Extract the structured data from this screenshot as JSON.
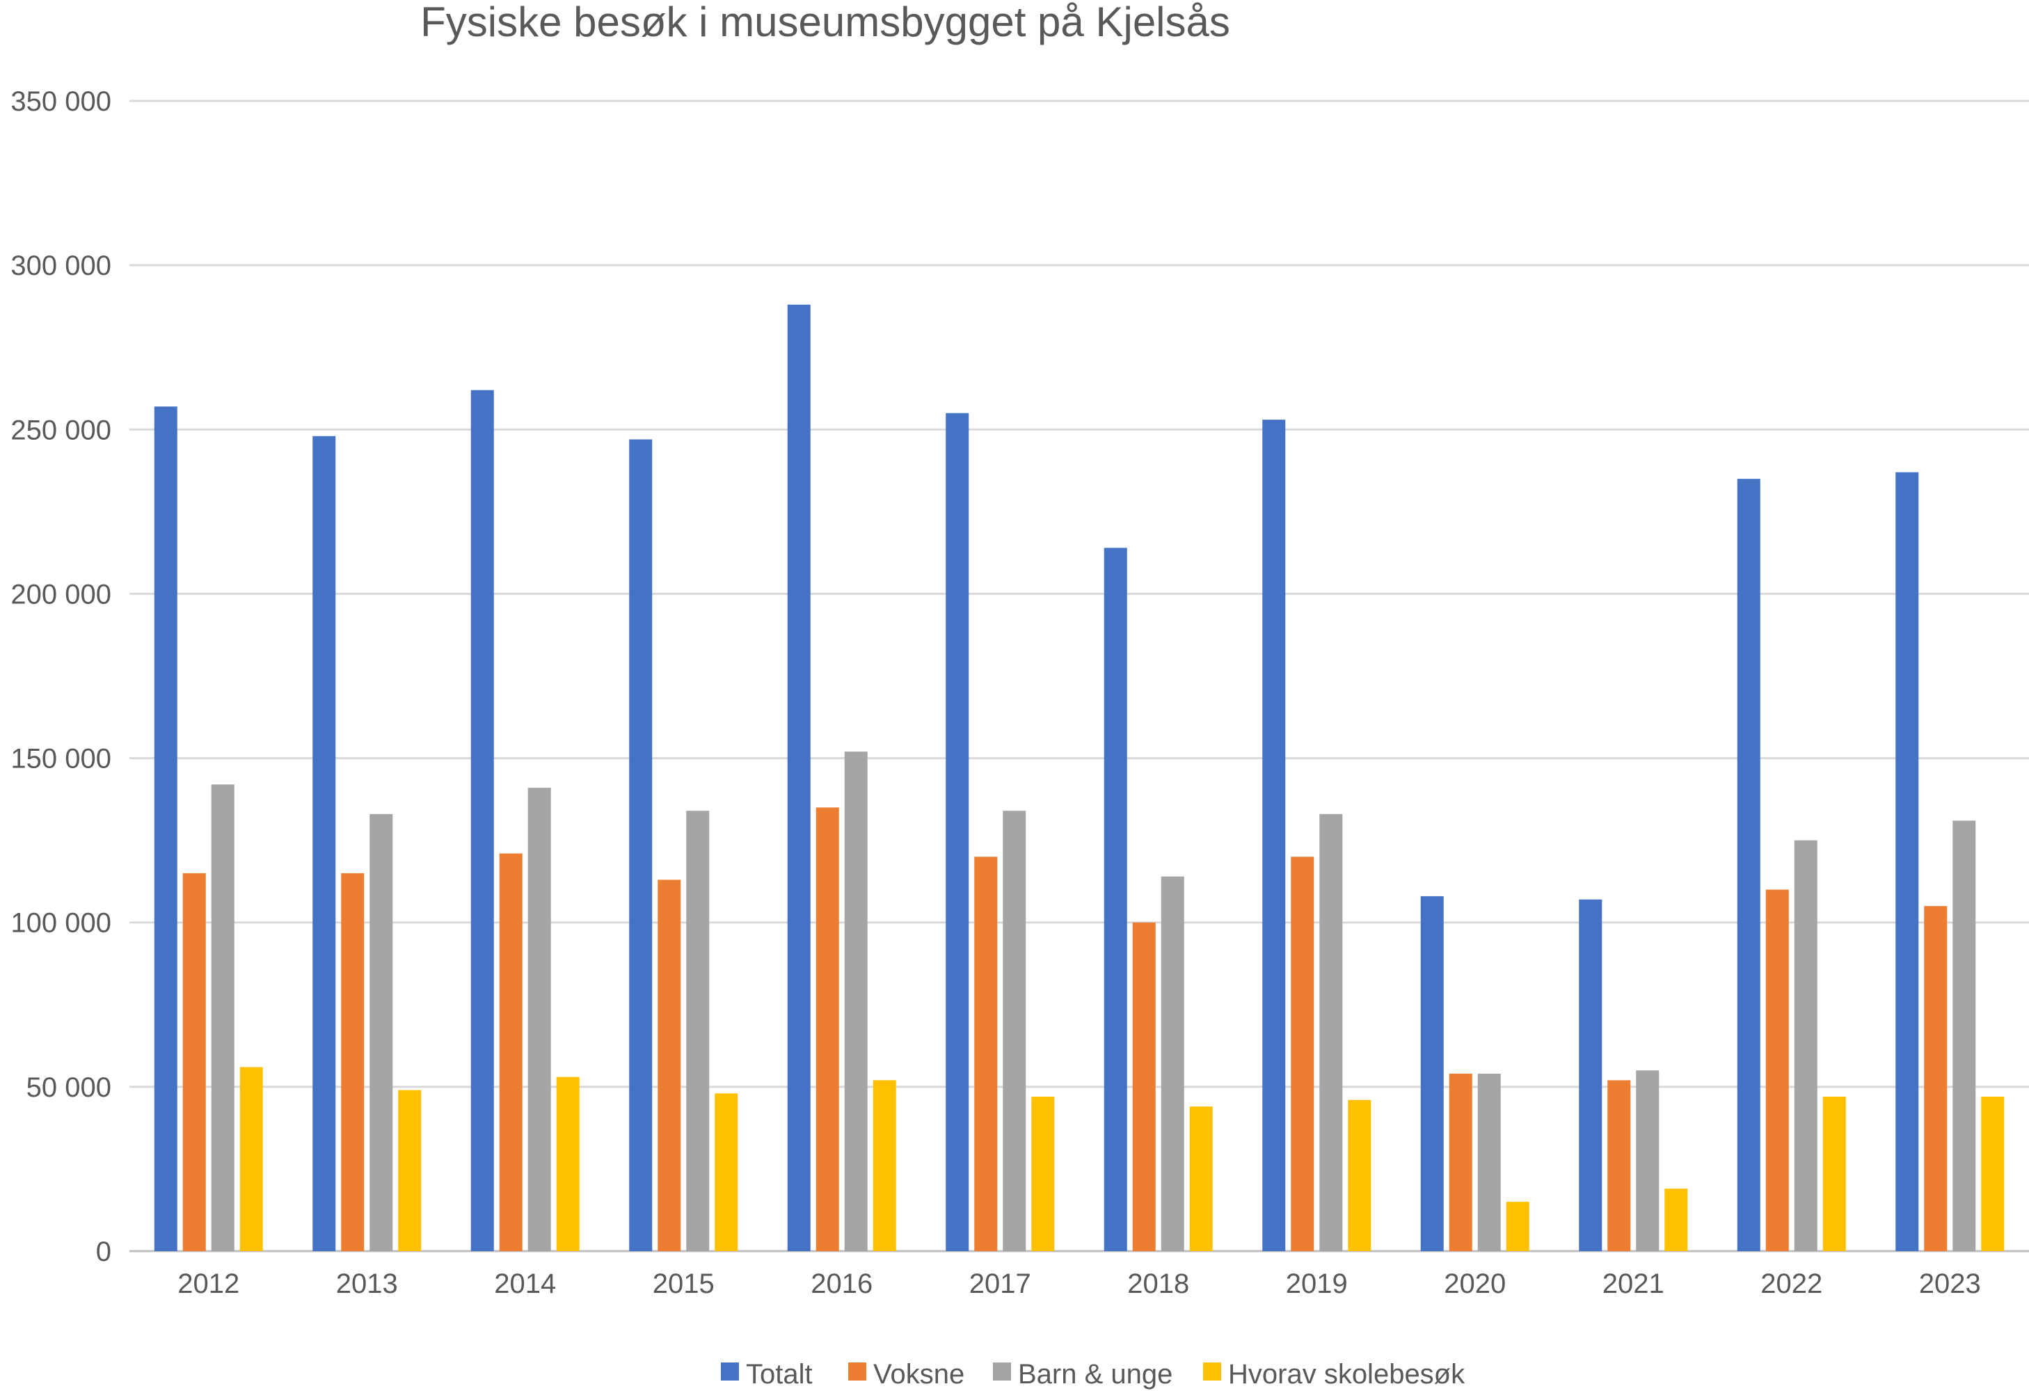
{
  "chart_data": {
    "type": "bar",
    "title": "Fysiske besøk i museumsbygget på Kjelsås",
    "xlabel": "",
    "ylabel": "",
    "ylim": [
      0,
      350000
    ],
    "yticks": [
      0,
      50000,
      100000,
      150000,
      200000,
      250000,
      300000,
      350000
    ],
    "ytick_labels": [
      "0",
      "50 000",
      "100 000",
      "150 000",
      "200 000",
      "250 000",
      "300 000",
      "350 000"
    ],
    "grid": true,
    "legend_position": "bottom",
    "categories": [
      "2012",
      "2013",
      "2014",
      "2015",
      "2016",
      "2017",
      "2018",
      "2019",
      "2020",
      "2021",
      "2022",
      "2023"
    ],
    "series": [
      {
        "name": "Totalt",
        "color": "#4472C4",
        "values": [
          257000,
          248000,
          262000,
          247000,
          288000,
          255000,
          214000,
          253000,
          108000,
          107000,
          235000,
          237000
        ]
      },
      {
        "name": "Voksne",
        "color": "#ED7D31",
        "values": [
          115000,
          115000,
          121000,
          113000,
          135000,
          120000,
          100000,
          120000,
          54000,
          52000,
          110000,
          105000
        ]
      },
      {
        "name": "Barn & unge",
        "color": "#A5A5A5",
        "values": [
          142000,
          133000,
          141000,
          134000,
          152000,
          134000,
          114000,
          133000,
          54000,
          55000,
          125000,
          131000
        ]
      },
      {
        "name": "Hvorav skolebesøk",
        "color": "#FFC000",
        "values": [
          56000,
          49000,
          53000,
          48000,
          52000,
          47000,
          44000,
          46000,
          15000,
          19000,
          47000,
          47000
        ]
      }
    ]
  }
}
